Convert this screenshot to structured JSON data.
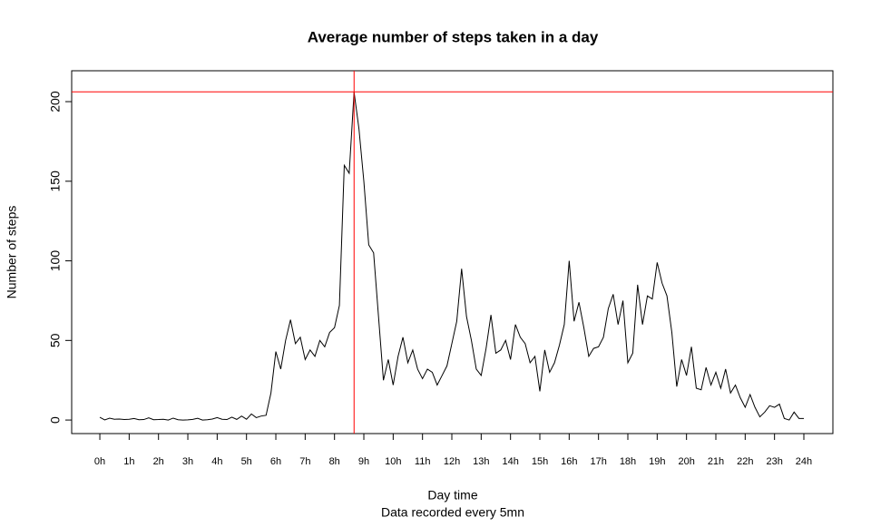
{
  "chart_data": {
    "type": "line",
    "title": "Average number of steps taken in a day",
    "xlabel": "Day time",
    "subtitle": "Data recorded every 5mn",
    "ylabel": "Number of steps",
    "x": [
      0,
      0.167,
      0.333,
      0.5,
      0.667,
      0.833,
      1,
      1.167,
      1.333,
      1.5,
      1.667,
      1.833,
      2,
      2.167,
      2.333,
      2.5,
      2.667,
      2.833,
      3,
      3.167,
      3.333,
      3.5,
      3.667,
      3.833,
      4,
      4.167,
      4.333,
      4.5,
      4.667,
      4.833,
      5,
      5.167,
      5.333,
      5.5,
      5.667,
      5.833,
      6,
      6.167,
      6.333,
      6.5,
      6.667,
      6.833,
      7,
      7.167,
      7.333,
      7.5,
      7.667,
      7.833,
      8,
      8.167,
      8.333,
      8.5,
      8.667,
      8.833,
      9,
      9.167,
      9.333,
      9.5,
      9.667,
      9.833,
      10,
      10.167,
      10.333,
      10.5,
      10.667,
      10.833,
      11,
      11.167,
      11.333,
      11.5,
      11.667,
      11.833,
      12,
      12.167,
      12.333,
      12.5,
      12.667,
      12.833,
      13,
      13.167,
      13.333,
      13.5,
      13.667,
      13.833,
      14,
      14.167,
      14.333,
      14.5,
      14.667,
      14.833,
      15,
      15.167,
      15.333,
      15.5,
      15.667,
      15.833,
      16,
      16.167,
      16.333,
      16.5,
      16.667,
      16.833,
      17,
      17.167,
      17.333,
      17.5,
      17.667,
      17.833,
      18,
      18.167,
      18.333,
      18.5,
      18.667,
      18.833,
      19,
      19.167,
      19.333,
      19.5,
      19.667,
      19.833,
      20,
      20.167,
      20.333,
      20.5,
      20.667,
      20.833,
      21,
      21.167,
      21.333,
      21.5,
      21.667,
      21.833,
      22,
      22.167,
      22.333,
      22.5,
      22.667,
      22.833,
      23,
      23.167,
      23.333,
      23.5,
      23.667,
      23.833,
      24
    ],
    "series": [
      {
        "color": "#000000",
        "values": [
          1.7,
          0.1,
          1.2,
          0.5,
          0.6,
          0.3,
          0.5,
          1.0,
          0.2,
          0.3,
          1.4,
          0.2,
          0.3,
          0.5,
          0.0,
          1.2,
          0.2,
          0.0,
          0.1,
          0.4,
          1.1,
          0.0,
          0.2,
          0.6,
          1.5,
          0.5,
          0.3,
          1.8,
          0.4,
          2.5,
          0.5,
          3.8,
          1.5,
          2.5,
          3.0,
          17,
          43,
          32,
          50,
          63,
          48,
          52,
          38,
          44,
          40,
          50,
          46,
          55,
          58,
          72,
          160,
          155,
          206,
          183,
          150,
          110,
          105,
          65,
          25,
          38,
          22,
          40,
          52,
          36,
          44,
          32,
          26,
          32,
          30,
          22,
          28,
          34,
          48,
          62,
          95,
          65,
          50,
          32,
          28,
          45,
          66,
          42,
          44,
          50,
          38,
          60,
          52,
          48,
          36,
          40,
          18,
          44,
          30,
          36,
          47,
          60,
          100,
          62,
          74,
          58,
          40,
          45,
          46,
          52,
          70,
          79,
          60,
          75,
          36,
          42,
          85,
          60,
          78,
          76,
          99,
          86,
          78,
          55,
          21,
          38,
          28,
          46,
          20,
          19,
          33,
          22,
          30,
          20,
          32,
          17,
          22,
          14,
          8,
          16,
          8,
          2,
          5,
          9,
          8,
          10,
          1,
          0,
          5,
          1,
          1
        ]
      }
    ],
    "hline": 206.17,
    "vline": 8.667,
    "ref_color": "#ff0000",
    "xtick_color": "#0000ff",
    "xlim": [
      -0.96,
      24.99
    ],
    "ylim": [
      -8.5,
      219.4
    ],
    "xticks": [
      {
        "value": 0,
        "label": "0h"
      },
      {
        "value": 1,
        "label": "1h"
      },
      {
        "value": 2,
        "label": "2h"
      },
      {
        "value": 3,
        "label": "3h"
      },
      {
        "value": 4,
        "label": "4h"
      },
      {
        "value": 5,
        "label": "5h"
      },
      {
        "value": 6,
        "label": "6h"
      },
      {
        "value": 7,
        "label": "7h"
      },
      {
        "value": 8,
        "label": "8h"
      },
      {
        "value": 9,
        "label": "9h"
      },
      {
        "value": 10,
        "label": "10h"
      },
      {
        "value": 11,
        "label": "11h"
      },
      {
        "value": 12,
        "label": "12h"
      },
      {
        "value": 13,
        "label": "13h"
      },
      {
        "value": 14,
        "label": "14h"
      },
      {
        "value": 15,
        "label": "15h"
      },
      {
        "value": 16,
        "label": "16h"
      },
      {
        "value": 17,
        "label": "17h"
      },
      {
        "value": 18,
        "label": "18h"
      },
      {
        "value": 19,
        "label": "19h"
      },
      {
        "value": 20,
        "label": "20h"
      },
      {
        "value": 21,
        "label": "21h"
      },
      {
        "value": 22,
        "label": "22h"
      },
      {
        "value": 23,
        "label": "23h"
      },
      {
        "value": 24,
        "label": "24h"
      }
    ],
    "yticks": [
      0,
      50,
      100,
      150,
      200
    ]
  }
}
